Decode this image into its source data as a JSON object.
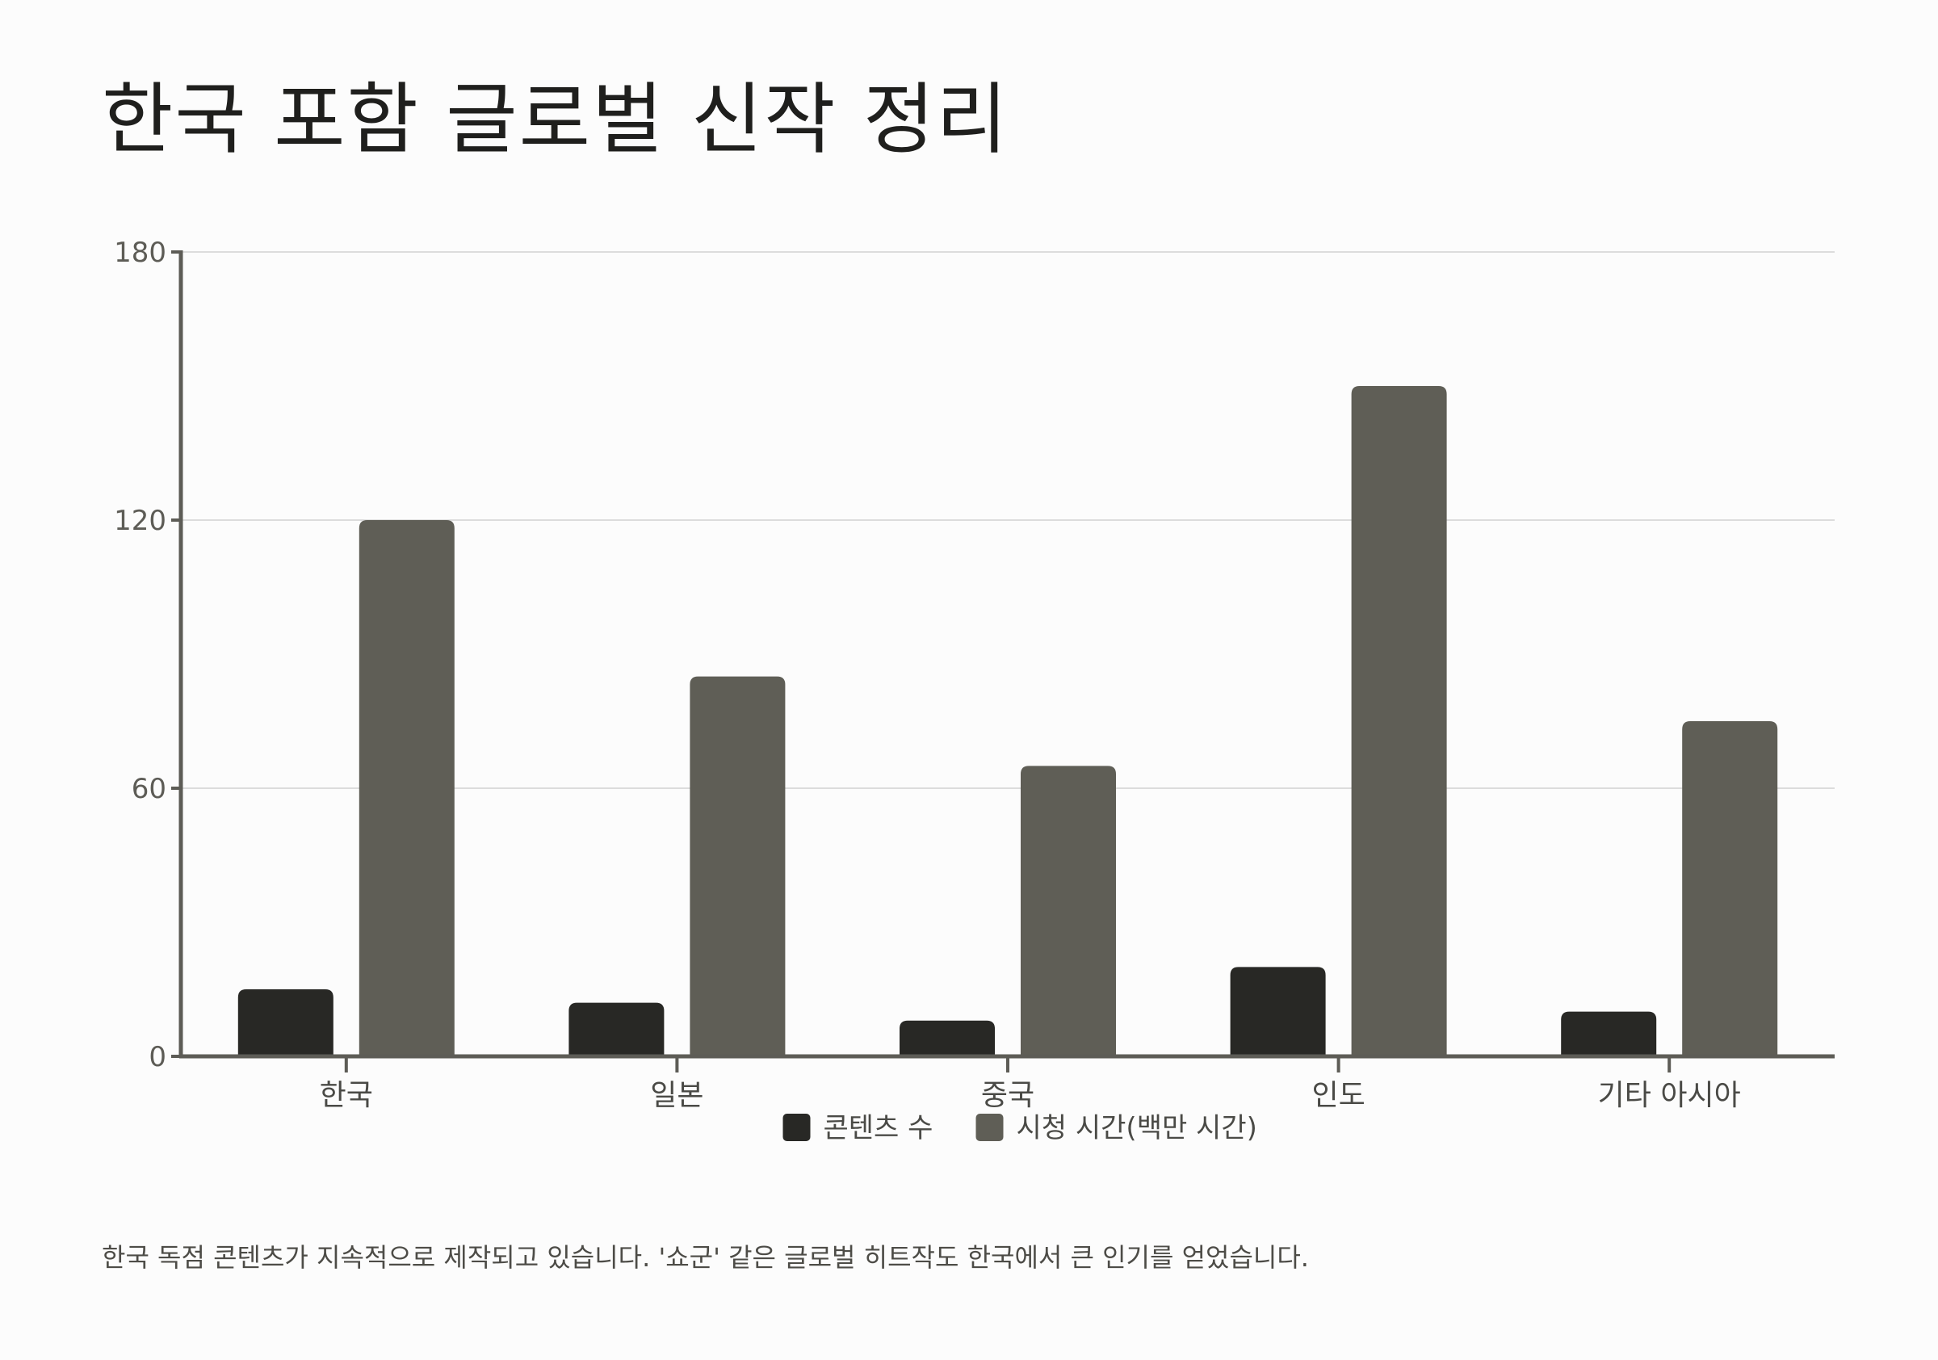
{
  "title": "한국 포함 글로벌 신작 정리",
  "footnote": "한국 독점 콘텐츠가 지속적으로 제작되고 있습니다. '쇼군' 같은 글로벌 히트작도 한국에서 큰 인기를 얻었습니다.",
  "chart_data": {
    "type": "bar",
    "title": "한국 포함 글로벌 신작 정리",
    "categories": [
      "한국",
      "일본",
      "중국",
      "인도",
      "기타 아시아"
    ],
    "series": [
      {
        "name": "콘텐츠 수",
        "values": [
          15,
          12,
          8,
          20,
          10
        ],
        "color": "#282825"
      },
      {
        "name": "시청 시간(백만 시간)",
        "values": [
          120,
          85,
          65,
          150,
          75
        ],
        "color": "#5f5e56"
      }
    ],
    "ylim": [
      0,
      180
    ],
    "yticks": [
      0,
      60,
      120,
      180
    ],
    "xlabel": "",
    "ylabel": "",
    "grid": true,
    "legend": "bottom-center",
    "colors": {
      "axis": "#5d5c56",
      "grid": "#dcdcdc"
    }
  }
}
